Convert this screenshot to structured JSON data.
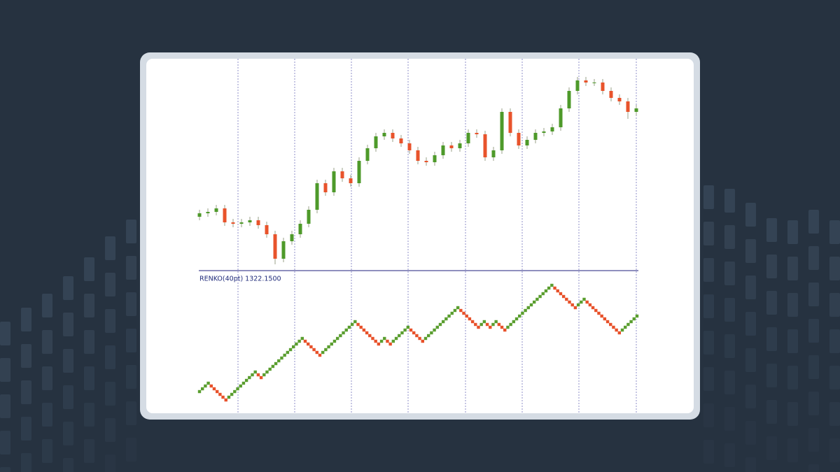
{
  "chart_data": [
    {
      "type": "candlestick",
      "up_color": "#4e9a2a",
      "down_color": "#e8532b",
      "ylim": [
        1300,
        1329
      ],
      "open": [
        1308.0,
        1308.5,
        1308.7,
        1309.2,
        1307.2,
        1307.0,
        1307.2,
        1307.5,
        1306.8,
        1305.5,
        1302.0,
        1304.5,
        1305.5,
        1307.0,
        1309.0,
        1312.8,
        1311.5,
        1314.5,
        1313.5,
        1312.8,
        1316.0,
        1317.8,
        1319.5,
        1320.0,
        1319.2,
        1318.5,
        1317.5,
        1316.0,
        1315.8,
        1316.8,
        1318.2,
        1317.8,
        1318.5,
        1320.0,
        1319.8,
        1316.5,
        1317.5,
        1323.0,
        1320.0,
        1318.2,
        1319.0,
        1320.0,
        1320.2,
        1320.8,
        1323.5,
        1326.0,
        1327.5,
        1327.2,
        1327.2,
        1326.0,
        1325.0,
        1324.5,
        1323.0
      ],
      "close": [
        1308.5,
        1308.7,
        1309.2,
        1307.2,
        1307.0,
        1307.2,
        1307.5,
        1306.8,
        1305.5,
        1302.0,
        1304.5,
        1305.5,
        1307.0,
        1309.0,
        1312.8,
        1311.5,
        1314.5,
        1313.5,
        1312.8,
        1316.0,
        1317.8,
        1319.5,
        1320.0,
        1319.2,
        1318.5,
        1317.5,
        1316.0,
        1315.8,
        1316.8,
        1318.2,
        1317.8,
        1318.5,
        1320.0,
        1319.8,
        1316.5,
        1317.5,
        1323.0,
        1320.0,
        1318.2,
        1319.0,
        1320.0,
        1320.2,
        1320.8,
        1323.5,
        1326.0,
        1327.5,
        1327.2,
        1327.2,
        1326.0,
        1325.0,
        1324.5,
        1323.0,
        1323.5
      ],
      "high": [
        1309.0,
        1309.2,
        1309.7,
        1309.7,
        1307.7,
        1307.7,
        1308.0,
        1308.0,
        1307.3,
        1306.0,
        1305.0,
        1306.0,
        1307.5,
        1309.5,
        1313.3,
        1313.3,
        1315.0,
        1315.0,
        1314.0,
        1316.5,
        1318.3,
        1320.0,
        1320.5,
        1320.5,
        1319.7,
        1319.0,
        1318.0,
        1316.5,
        1317.3,
        1318.7,
        1318.7,
        1319.0,
        1320.5,
        1320.5,
        1320.3,
        1318.0,
        1323.5,
        1323.5,
        1320.5,
        1319.5,
        1320.5,
        1320.7,
        1321.3,
        1324.0,
        1326.5,
        1328.0,
        1328.0,
        1327.7,
        1327.7,
        1326.5,
        1325.5,
        1325.0,
        1324.0
      ],
      "low": [
        1307.5,
        1308.0,
        1308.2,
        1306.7,
        1306.5,
        1306.5,
        1306.7,
        1306.3,
        1305.0,
        1301.2,
        1301.5,
        1304.0,
        1305.0,
        1306.5,
        1308.5,
        1311.0,
        1311.0,
        1313.0,
        1312.3,
        1312.3,
        1315.5,
        1317.3,
        1319.0,
        1318.7,
        1318.0,
        1317.0,
        1315.5,
        1315.3,
        1315.3,
        1316.3,
        1317.3,
        1317.3,
        1318.0,
        1319.3,
        1316.0,
        1316.0,
        1317.0,
        1319.5,
        1317.7,
        1317.7,
        1318.5,
        1319.5,
        1319.7,
        1320.3,
        1323.0,
        1325.5,
        1326.7,
        1326.7,
        1325.5,
        1324.5,
        1324.0,
        1322.0,
        1322.5
      ]
    },
    {
      "type": "renko",
      "title": "RENKO(40pt) 1322.1500",
      "up_color": "#5a9e2f",
      "down_color": "#e8512a",
      "ylim": [
        1308.35,
        1328.35
      ],
      "values": [
        1311.35,
        1311.75,
        1312.15,
        1312.55,
        1312.15,
        1311.75,
        1311.35,
        1310.95,
        1310.55,
        1310.15,
        1310.55,
        1310.95,
        1311.35,
        1311.75,
        1312.15,
        1312.55,
        1312.95,
        1313.35,
        1313.75,
        1314.15,
        1313.75,
        1313.35,
        1313.75,
        1314.15,
        1314.55,
        1314.95,
        1315.35,
        1315.75,
        1316.15,
        1316.55,
        1316.95,
        1317.35,
        1317.75,
        1318.15,
        1318.55,
        1318.95,
        1318.55,
        1318.15,
        1317.75,
        1317.35,
        1316.95,
        1316.55,
        1316.95,
        1317.35,
        1317.75,
        1318.15,
        1318.55,
        1318.95,
        1319.35,
        1319.75,
        1320.15,
        1320.55,
        1320.95,
        1321.35,
        1320.95,
        1320.55,
        1320.15,
        1319.75,
        1319.35,
        1318.95,
        1318.55,
        1318.15,
        1318.55,
        1318.95,
        1318.55,
        1318.15,
        1318.55,
        1318.95,
        1319.35,
        1319.75,
        1320.15,
        1320.55,
        1320.15,
        1319.75,
        1319.35,
        1318.95,
        1318.55,
        1318.95,
        1319.35,
        1319.75,
        1320.15,
        1320.55,
        1320.95,
        1321.35,
        1321.75,
        1322.15,
        1322.55,
        1322.95,
        1323.35,
        1322.95,
        1322.55,
        1322.15,
        1321.75,
        1321.35,
        1320.95,
        1320.55,
        1320.95,
        1321.35,
        1320.95,
        1320.55,
        1320.95,
        1321.35,
        1320.95,
        1320.55,
        1320.15,
        1320.55,
        1320.95,
        1321.35,
        1321.75,
        1322.15,
        1322.55,
        1322.95,
        1323.35,
        1323.75,
        1324.15,
        1324.55,
        1324.95,
        1325.35,
        1325.75,
        1326.15,
        1326.55,
        1326.15,
        1325.75,
        1325.35,
        1324.95,
        1324.55,
        1324.15,
        1323.75,
        1323.35,
        1323.75,
        1324.15,
        1324.55,
        1324.15,
        1323.75,
        1323.35,
        1322.95,
        1322.55,
        1322.15,
        1321.75,
        1321.35,
        1320.95,
        1320.55,
        1320.15,
        1319.75,
        1320.15,
        1320.55,
        1320.95,
        1321.35,
        1321.75,
        1322.15
      ]
    }
  ]
}
